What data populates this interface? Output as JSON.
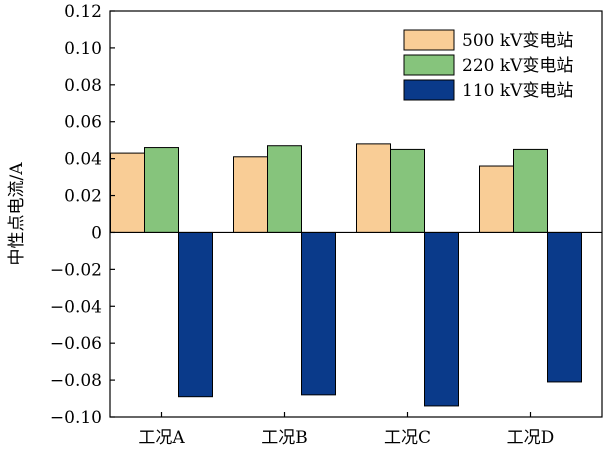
{
  "chart_data": {
    "type": "bar",
    "title": "",
    "xlabel": "",
    "ylabel": "中性点电流/A",
    "categories": [
      "工况A",
      "工况B",
      "工况C",
      "工况D"
    ],
    "ylim": [
      -0.1,
      0.12
    ],
    "yticks": [
      0.12,
      0.1,
      0.08,
      0.06,
      0.04,
      0.02,
      0,
      -0.02,
      -0.04,
      -0.06,
      -0.08,
      -0.1
    ],
    "ytick_labels": [
      "0.12",
      "0.10",
      "0.08",
      "0.06",
      "0.04",
      "0.02",
      "0",
      "−0.02",
      "−0.04",
      "−0.06",
      "−0.08",
      "−0.10"
    ],
    "legend_position": "top-right",
    "grid": false,
    "series": [
      {
        "name": "500 kV变电站",
        "color": "#F9CD96",
        "values": [
          0.043,
          0.041,
          0.048,
          0.036
        ]
      },
      {
        "name": "220 kV变电站",
        "color": "#86C47C",
        "values": [
          0.046,
          0.047,
          0.045,
          0.045
        ]
      },
      {
        "name": "110 kV变电站",
        "color": "#0A3A8A",
        "values": [
          -0.089,
          -0.088,
          -0.094,
          -0.081
        ]
      }
    ]
  }
}
